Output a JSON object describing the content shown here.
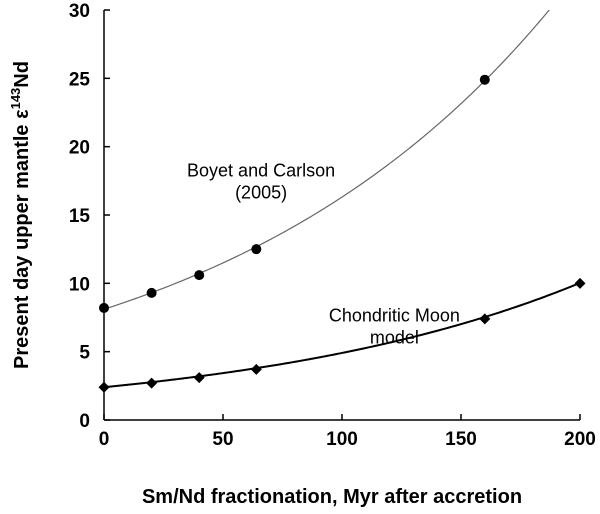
{
  "chart_data": {
    "type": "scatter",
    "title": "",
    "xlabel": "Sm/Nd fractionation, Myr after accretion",
    "ylabel": {
      "prefix": "Present day upper mantle ",
      "epsilon": "ε",
      "sup": "143",
      "suffix": "Nd"
    },
    "xlim": [
      0,
      200
    ],
    "ylim": [
      0,
      30
    ],
    "xticks": [
      "0",
      "50",
      "100",
      "150",
      "200"
    ],
    "yticks": [
      "0",
      "5",
      "10",
      "15",
      "20",
      "25",
      "30"
    ],
    "series": [
      {
        "name": "Boyet and Carlson (2005)",
        "marker": "circle",
        "line_color": "#666666",
        "points": [
          {
            "x": 0,
            "y": 8.2
          },
          {
            "x": 20,
            "y": 9.3
          },
          {
            "x": 40,
            "y": 10.6
          },
          {
            "x": 64,
            "y": 12.5
          },
          {
            "x": 160,
            "y": 24.9
          }
        ],
        "curve": {
          "a": 8.1,
          "b": 0.007
        }
      },
      {
        "name": "Chondritic Moon model",
        "marker": "diamond",
        "line_color": "#000000",
        "points": [
          {
            "x": 0,
            "y": 2.4
          },
          {
            "x": 20,
            "y": 2.7
          },
          {
            "x": 40,
            "y": 3.1
          },
          {
            "x": 64,
            "y": 3.7
          },
          {
            "x": 160,
            "y": 7.4
          },
          {
            "x": 200,
            "y": 10.0
          }
        ],
        "curve": {
          "a": 2.4,
          "b": 0.00715
        }
      }
    ],
    "annotations": [
      {
        "lines": [
          "Boyet and Carlson",
          "(2005)"
        ],
        "x": 66,
        "y": 17.8
      },
      {
        "lines": [
          "Chondritic Moon",
          "model"
        ],
        "x": 122,
        "y": 7.2
      }
    ],
    "grid": false,
    "legend": "none"
  }
}
